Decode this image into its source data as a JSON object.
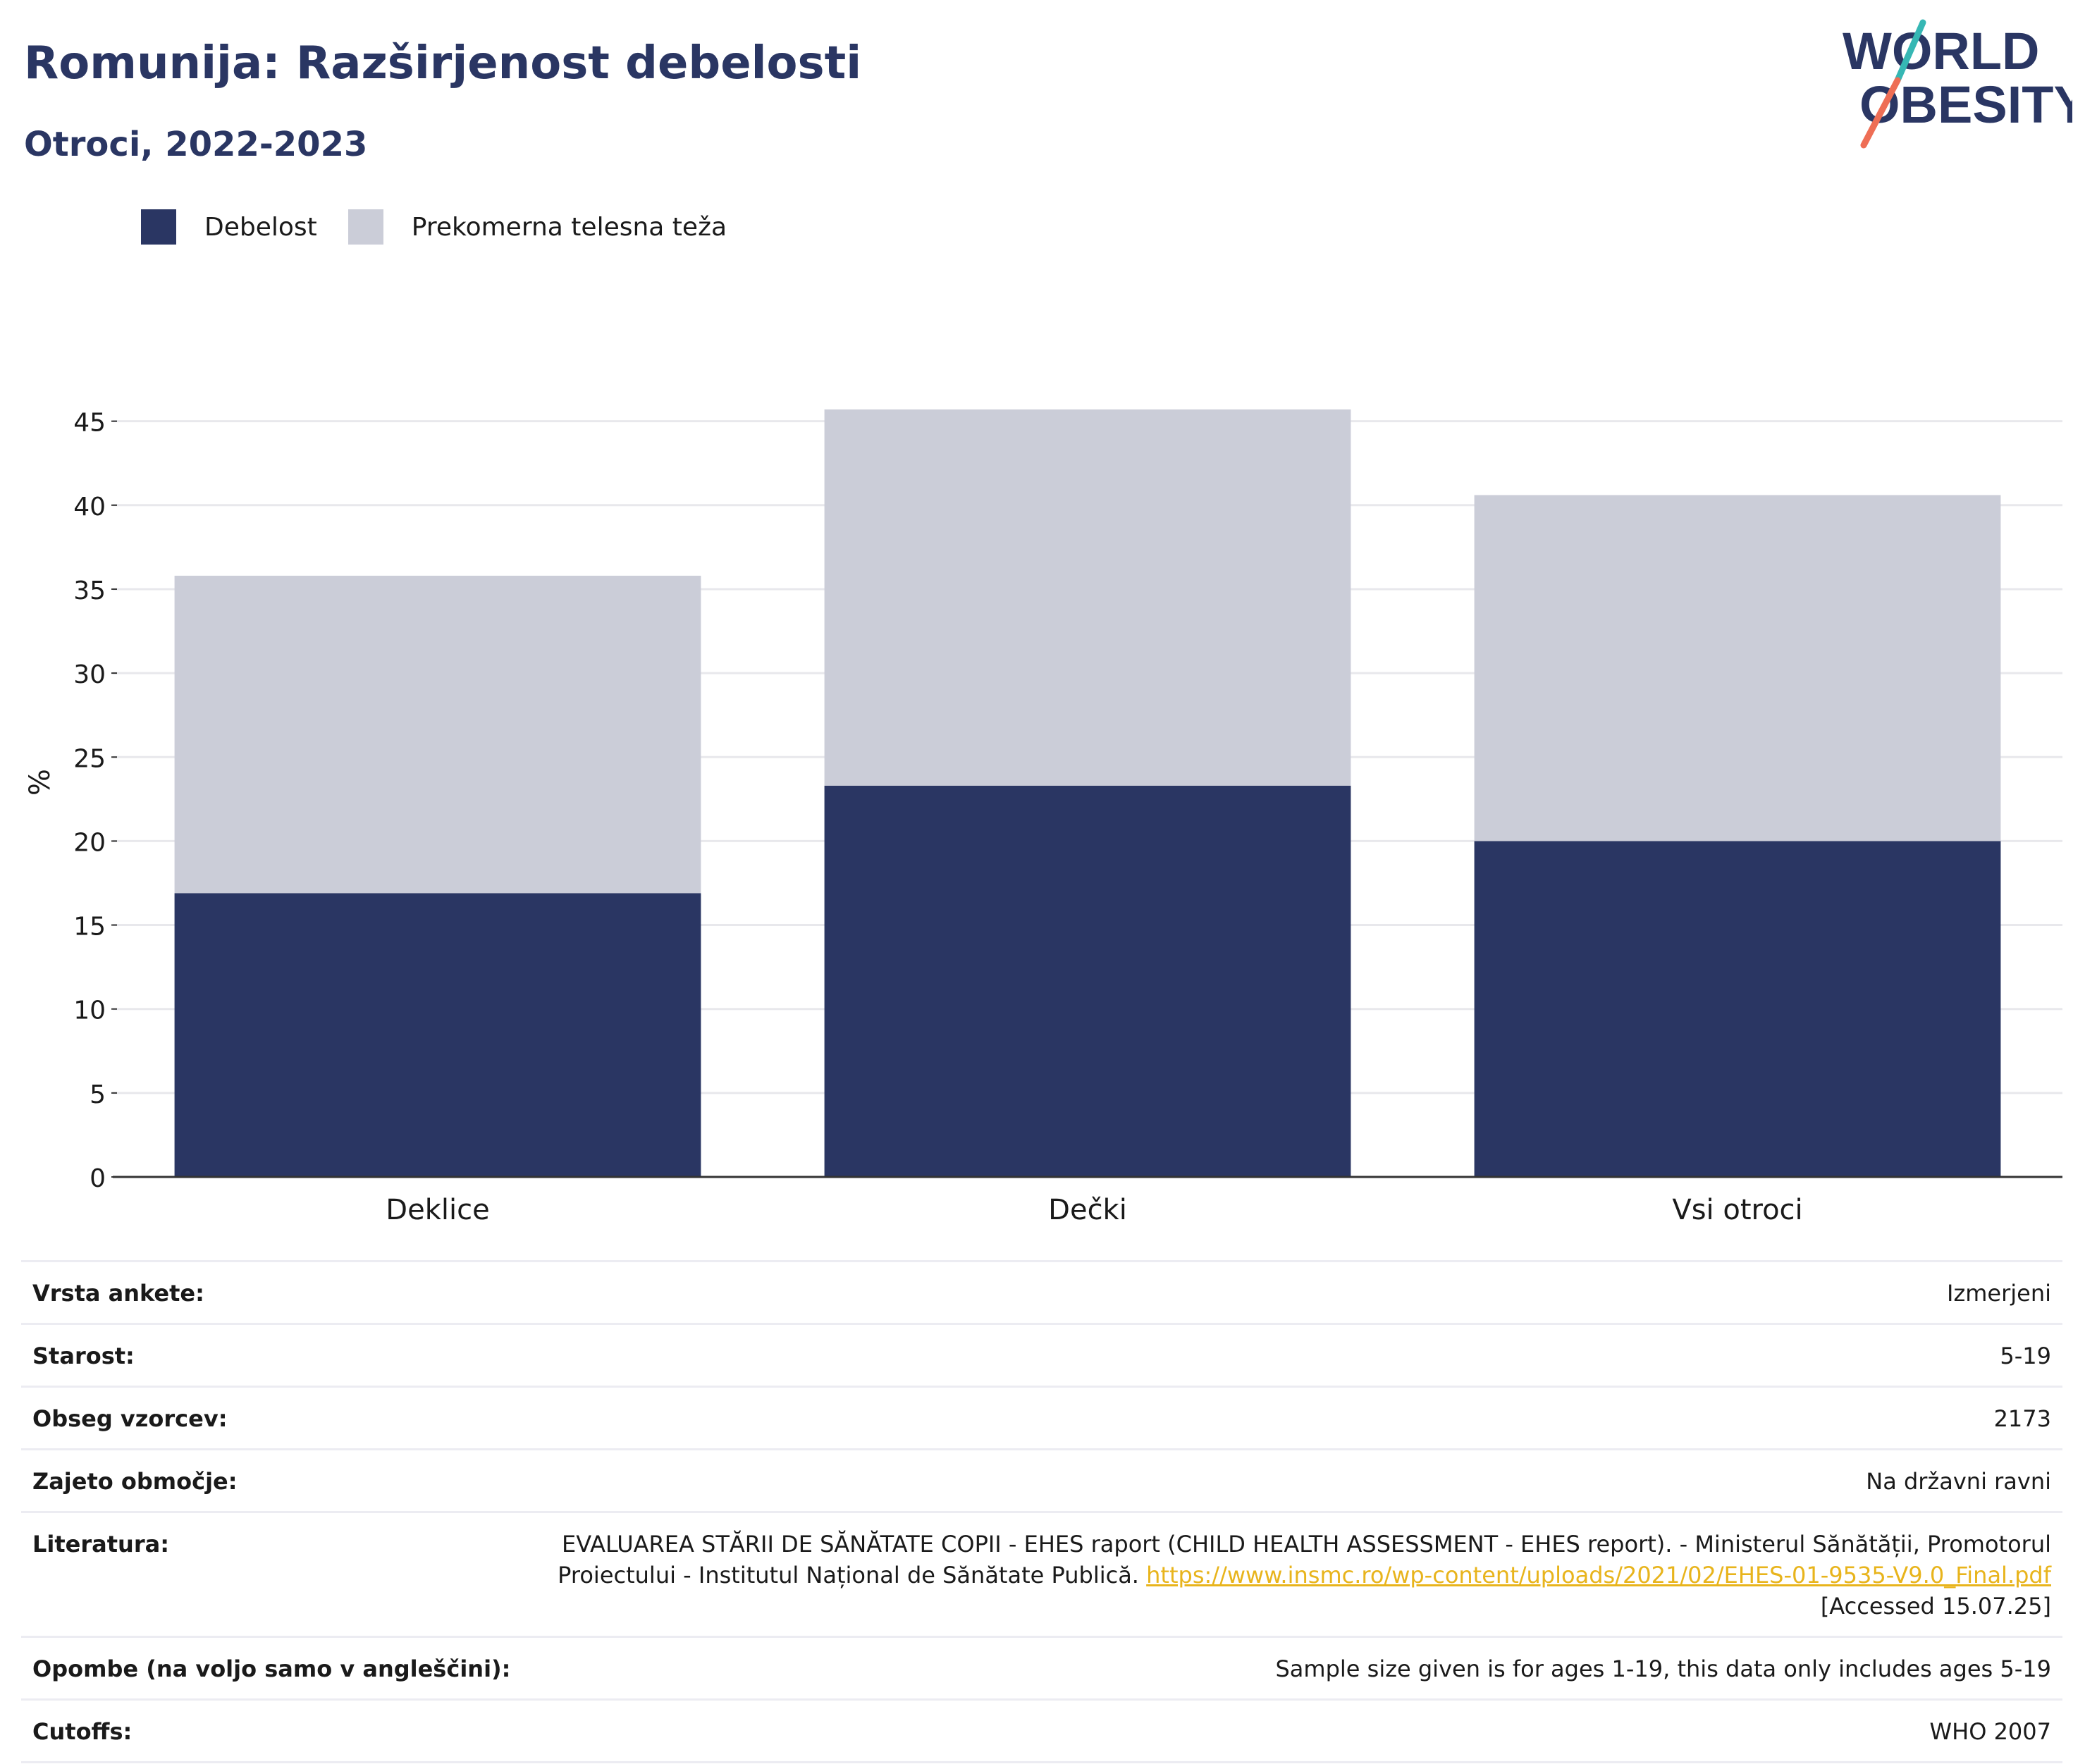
{
  "header": {
    "title": "Romunija: Razširjenost debelosti",
    "subtitle": "Otroci, 2022-2023"
  },
  "logo": {
    "line1": "WORLD",
    "line2": "OBESITY"
  },
  "colors": {
    "debelost": "#2a3663",
    "prekomerna": "#cbcdd8",
    "grid": "#e8e8ec",
    "axis": "#333333",
    "link": "#e8b41c",
    "logo_text": "#2a3663",
    "logo_slash_top": "#36b7b4",
    "logo_slash_bottom": "#ee6e55"
  },
  "legend": [
    {
      "label": "Debelost",
      "color": "#2a3663"
    },
    {
      "label": "Prekomerna telesna teža",
      "color": "#cbcdd8"
    }
  ],
  "chart_data": {
    "type": "bar",
    "stacked": true,
    "categories": [
      "Deklice",
      "Dečki",
      "Vsi otroci"
    ],
    "series": [
      {
        "name": "Debelost",
        "values": [
          16.9,
          23.3,
          20.0
        ]
      },
      {
        "name": "Prekomerna telesna teža",
        "values": [
          18.9,
          22.4,
          20.6
        ]
      }
    ],
    "ylabel": "%",
    "ylim": [
      0,
      47
    ],
    "yticks": [
      0,
      5,
      10,
      15,
      20,
      25,
      30,
      35,
      40,
      45
    ],
    "grid": true,
    "legend_position": "top-left"
  },
  "info": {
    "rows": [
      {
        "key": "Vrsta ankete:",
        "value": "Izmerjeni"
      },
      {
        "key": "Starost:",
        "value": "5-19"
      },
      {
        "key": "Obseg vzorcev:",
        "value": "2173"
      },
      {
        "key": "Zajeto območje:",
        "value": "Na državni ravni"
      },
      {
        "key": "Literatura:",
        "value_pre": "EVALUAREA STĂRII DE SĂNĂTATE COPII - EHES raport (CHILD HEALTH ASSESSMENT - EHES report). - Ministerul Sănătății, Promotorul Proiectului - Institutul Național de Sănătate Publică.",
        "link": "https://www.insmc.ro/wp-content/uploads/2021/02/EHES-01-9535-V9.0_Final.pdf",
        "value_post": "[Accessed 15.07.25]"
      },
      {
        "key": "Opombe (na voljo samo v angleščini):",
        "value": "Sample size given is for ages 1-19, this data only includes ages 5-19"
      },
      {
        "key": "Cutoffs:",
        "value": "WHO 2007"
      }
    ]
  }
}
